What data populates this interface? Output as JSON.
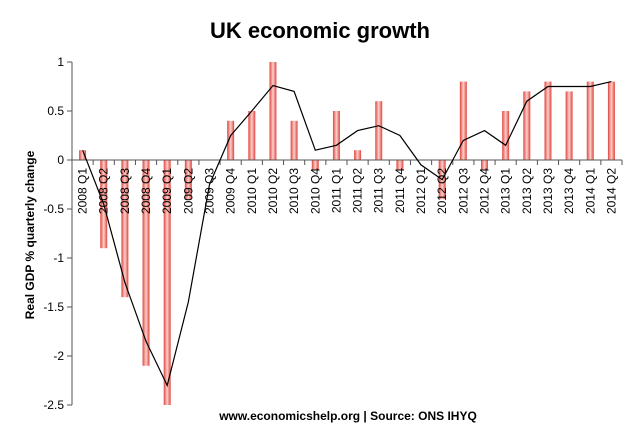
{
  "chart_data": {
    "type": "bar",
    "title": "UK economic growth",
    "ylabel": "Real GDP % quarterly change",
    "xlabel": "",
    "source_note": "www.economicshelp.org | Source: ONS  IHYQ",
    "ylim": [
      -2.5,
      1
    ],
    "yticks": [
      "1",
      "0.5",
      "0",
      "-0.5",
      "-1",
      "-1.5",
      "-2",
      "-2.5"
    ],
    "ytick_values": [
      1,
      0.5,
      0,
      -0.5,
      -1,
      -1.5,
      -2,
      -2.5
    ],
    "categories": [
      "2008 Q1",
      "2008 Q2",
      "2008 Q3",
      "2008 Q4",
      "2009 Q1",
      "2009 Q2",
      "2009 Q3",
      "2009 Q4",
      "2010 Q1",
      "2010 Q2",
      "2010 Q3",
      "2010 Q4",
      "2011 Q1",
      "2011 Q2",
      "2011 Q3",
      "2011 Q4",
      "2012 Q1",
      "2012 Q2",
      "2012 Q3",
      "2012 Q4",
      "2013 Q1",
      "2013 Q2",
      "2013 Q3",
      "2013 Q4",
      "2014 Q1",
      "2014 Q2"
    ],
    "series": [
      {
        "type": "bar",
        "values": [
          0.1,
          -0.9,
          -1.4,
          -2.1,
          -2.5,
          -0.4,
          0.0,
          0.4,
          0.5,
          1.0,
          0.4,
          -0.1,
          0.5,
          0.1,
          0.6,
          -0.1,
          0.0,
          -0.4,
          0.8,
          -0.1,
          0.5,
          0.7,
          0.8,
          0.7,
          0.8,
          0.8
        ]
      },
      {
        "type": "line",
        "x": [
          0.5,
          1.5,
          2.5,
          3.5,
          4.5,
          5.5,
          6.5,
          7.5,
          8.5,
          9.5,
          10.5,
          11.5,
          12.5,
          13.5,
          14.5,
          15.5,
          16.5,
          17.5,
          18.5,
          19.5,
          20.5,
          21.5,
          22.5,
          23.5,
          24.5,
          25.5
        ],
        "values": [
          0.1,
          -0.45,
          -1.25,
          -1.85,
          -2.3,
          -1.45,
          -0.25,
          0.25,
          0.5,
          0.76,
          0.7,
          0.1,
          0.15,
          0.3,
          0.35,
          0.25,
          -0.05,
          -0.2,
          0.2,
          0.3,
          0.15,
          0.6,
          0.75,
          0.75,
          0.75,
          0.8
        ]
      }
    ],
    "colors": {
      "bar_edge": "#e0443c",
      "bar_mid": "#fbd0cc",
      "line": "#000000",
      "axis": "#555555"
    },
    "grid": false,
    "legend": "none"
  }
}
